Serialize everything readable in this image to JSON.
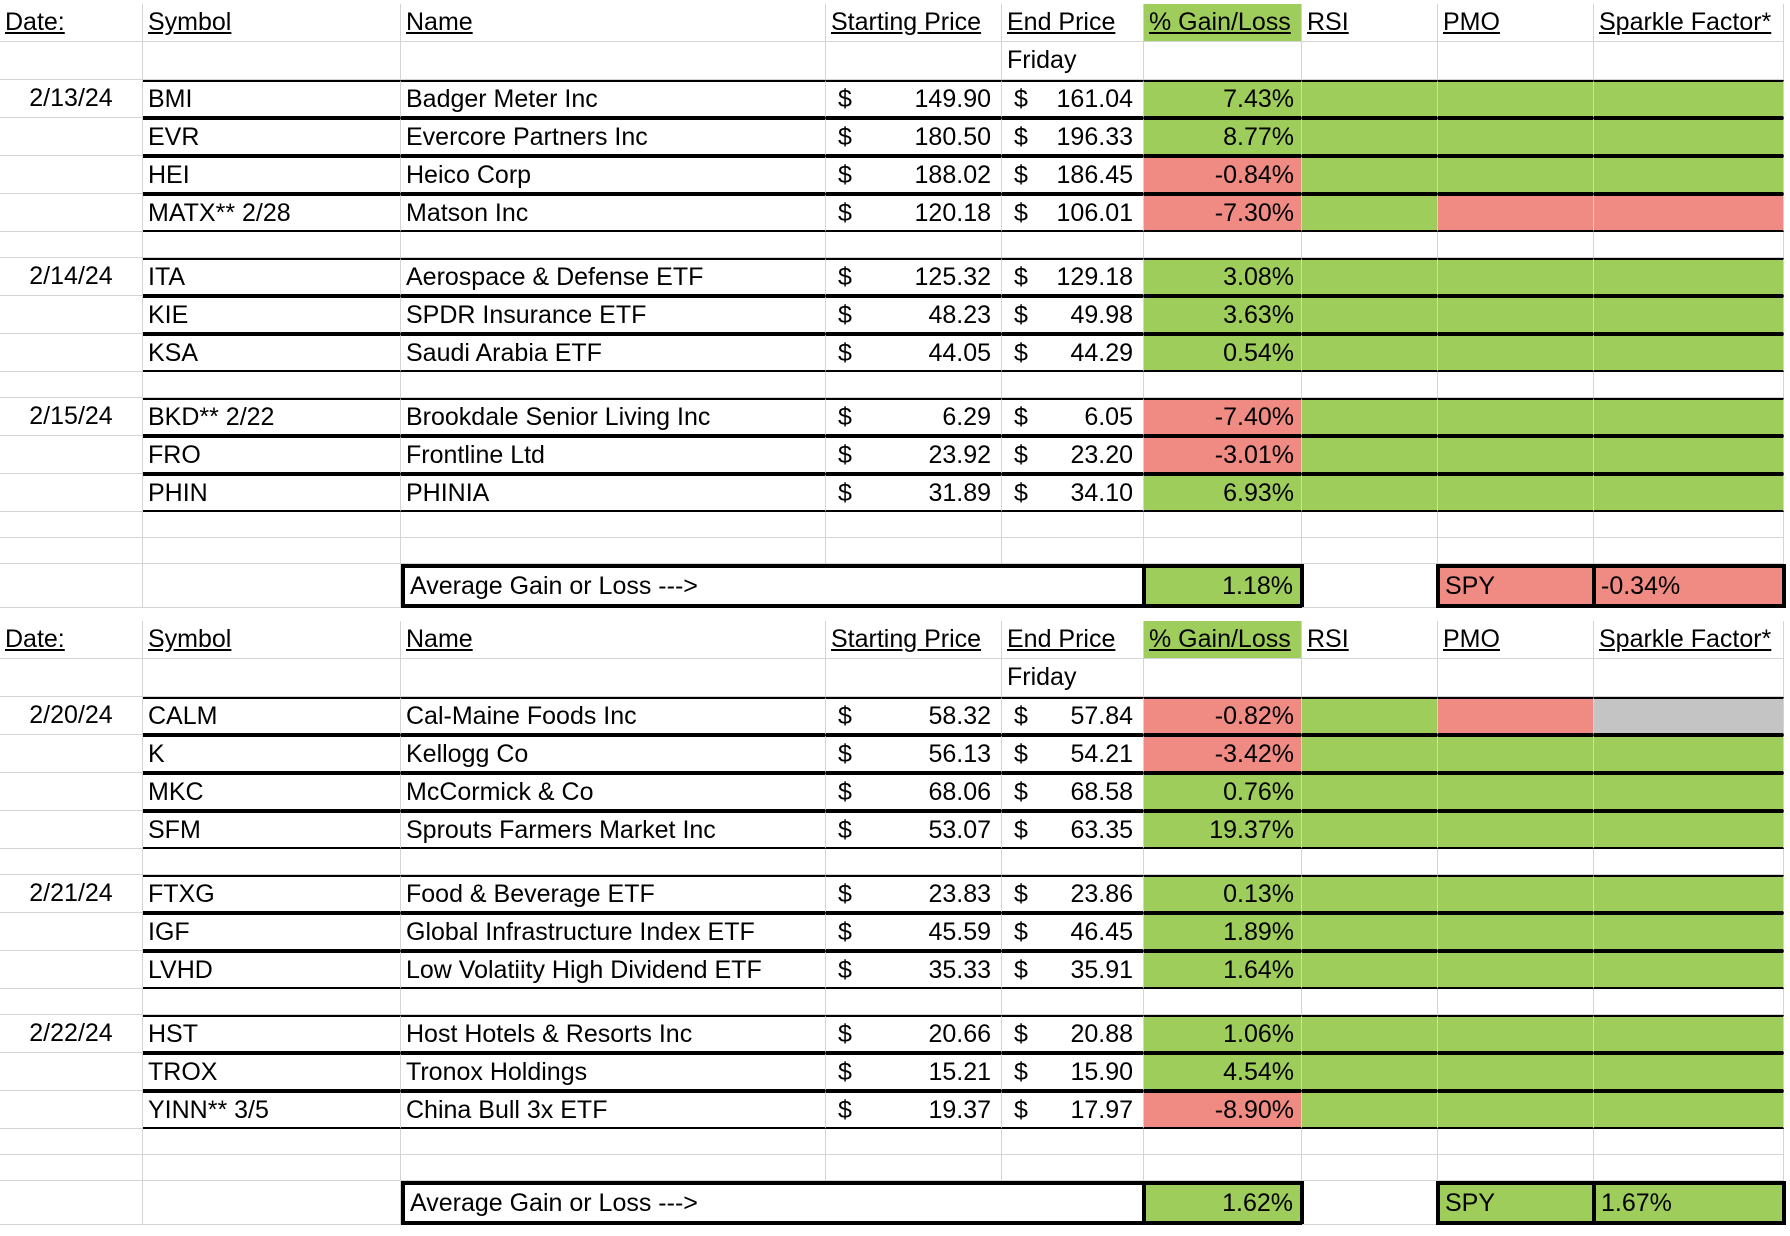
{
  "colors": {
    "gain": "#9fcd5b",
    "loss": "#ef8b83",
    "neutral": "#c4c4c4"
  },
  "tables": [
    {
      "header": {
        "date": "Date:",
        "symbol": "Symbol",
        "name": "Name",
        "start": "Starting Price",
        "end": "End Price",
        "pct": "% Gain/Loss",
        "rsi": "RSI",
        "pmo": "PMO",
        "sparkle": "Sparkle Factor*",
        "end_sub": "Friday"
      },
      "groups": [
        {
          "date": "2/13/24",
          "rows": [
            {
              "symbol": "BMI",
              "name": "Badger Meter Inc",
              "cur": "$",
              "start": "149.90",
              "end": "161.04",
              "pct": "7.43%",
              "pct_status": "gain",
              "rsi": "gain",
              "pmo": "gain",
              "sparkle": "gain"
            },
            {
              "symbol": "EVR",
              "name": "Evercore Partners Inc",
              "cur": "$",
              "start": "180.50",
              "end": "196.33",
              "pct": "8.77%",
              "pct_status": "gain",
              "rsi": "gain",
              "pmo": "gain",
              "sparkle": "gain"
            },
            {
              "symbol": "HEI",
              "name": "Heico Corp",
              "cur": "$",
              "start": "188.02",
              "end": "186.45",
              "pct": "-0.84%",
              "pct_status": "loss",
              "rsi": "gain",
              "pmo": "gain",
              "sparkle": "gain"
            },
            {
              "symbol": "MATX** 2/28",
              "name": "Matson Inc",
              "cur": "$",
              "start": "120.18",
              "end": "106.01",
              "pct": "-7.30%",
              "pct_status": "loss",
              "rsi": "gain",
              "pmo": "loss",
              "sparkle": "loss"
            }
          ]
        },
        {
          "date": "2/14/24",
          "rows": [
            {
              "symbol": "ITA",
              "name": "Aerospace & Defense ETF",
              "cur": "$",
              "start": "125.32",
              "end": "129.18",
              "pct": "3.08%",
              "pct_status": "gain",
              "rsi": "gain",
              "pmo": "gain",
              "sparkle": "gain"
            },
            {
              "symbol": "KIE",
              "name": "SPDR Insurance ETF",
              "cur": "$",
              "start": "48.23",
              "end": "49.98",
              "pct": "3.63%",
              "pct_status": "gain",
              "rsi": "gain",
              "pmo": "gain",
              "sparkle": "gain"
            },
            {
              "symbol": "KSA",
              "name": "Saudi Arabia ETF",
              "cur": "$",
              "start": "44.05",
              "end": "44.29",
              "pct": "0.54%",
              "pct_status": "gain",
              "rsi": "gain",
              "pmo": "gain",
              "sparkle": "gain"
            }
          ]
        },
        {
          "date": "2/15/24",
          "rows": [
            {
              "symbol": "BKD** 2/22",
              "name": "Brookdale Senior Living Inc",
              "cur": "$",
              "start": "6.29",
              "end": "6.05",
              "pct": "-7.40%",
              "pct_status": "loss",
              "rsi": "gain",
              "pmo": "gain",
              "sparkle": "gain"
            },
            {
              "symbol": "FRO",
              "name": "Frontline Ltd",
              "cur": "$",
              "start": "23.92",
              "end": "23.20",
              "pct": "-3.01%",
              "pct_status": "loss",
              "rsi": "gain",
              "pmo": "gain",
              "sparkle": "gain"
            },
            {
              "symbol": "PHIN",
              "name": "PHINIA",
              "cur": "$",
              "start": "31.89",
              "end": "34.10",
              "pct": "6.93%",
              "pct_status": "gain",
              "rsi": "gain",
              "pmo": "gain",
              "sparkle": "gain"
            }
          ]
        }
      ],
      "summary": {
        "label": "Average Gain or Loss --->",
        "value": "1.18%",
        "value_status": "gain",
        "spy_label": "SPY",
        "spy_value": "-0.34%",
        "spy_status": "loss"
      }
    },
    {
      "header": {
        "date": "Date:",
        "symbol": "Symbol",
        "name": "Name",
        "start": "Starting Price",
        "end": "End Price",
        "pct": "% Gain/Loss",
        "rsi": "RSI",
        "pmo": "PMO",
        "sparkle": "Sparkle Factor*",
        "end_sub": "Friday"
      },
      "groups": [
        {
          "date": "2/20/24",
          "rows": [
            {
              "symbol": "CALM",
              "name": "Cal-Maine Foods Inc",
              "cur": "$",
              "start": "58.32",
              "end": "57.84",
              "pct": "-0.82%",
              "pct_status": "loss",
              "rsi": "gain",
              "pmo": "loss",
              "sparkle": "neutral"
            },
            {
              "symbol": "K",
              "name": "Kellogg Co",
              "cur": "$",
              "start": "56.13",
              "end": "54.21",
              "pct": "-3.42%",
              "pct_status": "loss",
              "rsi": "gain",
              "pmo": "gain",
              "sparkle": "gain"
            },
            {
              "symbol": "MKC",
              "name": "McCormick & Co",
              "cur": "$",
              "start": "68.06",
              "end": "68.58",
              "pct": "0.76%",
              "pct_status": "gain",
              "rsi": "gain",
              "pmo": "gain",
              "sparkle": "gain"
            },
            {
              "symbol": "SFM",
              "name": "Sprouts Farmers Market Inc",
              "cur": "$",
              "start": "53.07",
              "end": "63.35",
              "pct": "19.37%",
              "pct_status": "gain",
              "rsi": "gain",
              "pmo": "gain",
              "sparkle": "gain"
            }
          ]
        },
        {
          "date": "2/21/24",
          "rows": [
            {
              "symbol": "FTXG",
              "name": "Food & Beverage ETF",
              "cur": "$",
              "start": "23.83",
              "end": "23.86",
              "pct": "0.13%",
              "pct_status": "gain",
              "rsi": "gain",
              "pmo": "gain",
              "sparkle": "gain"
            },
            {
              "symbol": "IGF",
              "name": "Global Infrastructure Index ETF",
              "cur": "$",
              "start": "45.59",
              "end": "46.45",
              "pct": "1.89%",
              "pct_status": "gain",
              "rsi": "gain",
              "pmo": "gain",
              "sparkle": "gain"
            },
            {
              "symbol": "LVHD",
              "name": "Low Volatiity High Dividend ETF",
              "cur": "$",
              "start": "35.33",
              "end": "35.91",
              "pct": "1.64%",
              "pct_status": "gain",
              "rsi": "gain",
              "pmo": "gain",
              "sparkle": "gain"
            }
          ]
        },
        {
          "date": "2/22/24",
          "rows": [
            {
              "symbol": "HST",
              "name": "Host Hotels & Resorts Inc",
              "cur": "$",
              "start": "20.66",
              "end": "20.88",
              "pct": "1.06%",
              "pct_status": "gain",
              "rsi": "gain",
              "pmo": "gain",
              "sparkle": "gain"
            },
            {
              "symbol": "TROX",
              "name": "Tronox Holdings",
              "cur": "$",
              "start": "15.21",
              "end": "15.90",
              "pct": "4.54%",
              "pct_status": "gain",
              "rsi": "gain",
              "pmo": "gain",
              "sparkle": "gain"
            },
            {
              "symbol": "YINN** 3/5",
              "name": "China Bull 3x ETF",
              "cur": "$",
              "start": "19.37",
              "end": "17.97",
              "pct": "-8.90%",
              "pct_status": "loss",
              "rsi": "gain",
              "pmo": "gain",
              "sparkle": "gain"
            }
          ]
        }
      ],
      "summary": {
        "label": "Average Gain or Loss --->",
        "value": "1.62%",
        "value_status": "gain",
        "spy_label": "SPY",
        "spy_value": "1.67%",
        "spy_status": "gain"
      }
    }
  ]
}
